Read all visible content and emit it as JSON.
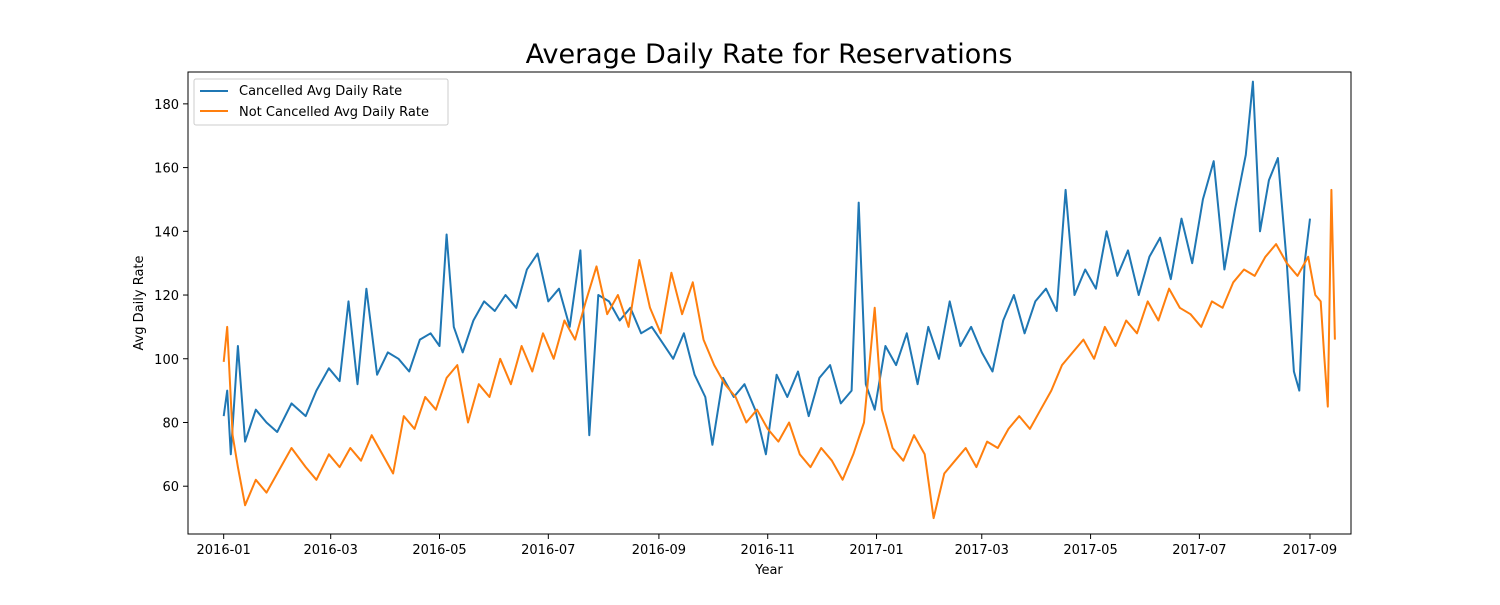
{
  "chart_data": {
    "type": "line",
    "title": "Average Daily Rate for Reservations",
    "xlabel": "Year",
    "ylabel": "Avg Daily Rate",
    "xlim": [
      "2015-12-12",
      "2017-09-24"
    ],
    "ylim": [
      45,
      190
    ],
    "x_ticks": [
      "2016-01",
      "2016-03",
      "2016-05",
      "2016-07",
      "2016-09",
      "2016-11",
      "2017-01",
      "2017-03",
      "2017-05",
      "2017-07",
      "2017-09"
    ],
    "y_ticks": [
      60,
      80,
      100,
      120,
      140,
      160,
      180
    ],
    "grid": false,
    "legend_position": "upper left",
    "series": [
      {
        "name": "Cancelled Avg Daily Rate",
        "color": "#1f77b4",
        "points": [
          [
            "2016-01-01",
            82
          ],
          [
            "2016-01-03",
            90
          ],
          [
            "2016-01-05",
            70
          ],
          [
            "2016-01-09",
            104
          ],
          [
            "2016-01-13",
            74
          ],
          [
            "2016-01-19",
            84
          ],
          [
            "2016-01-25",
            80
          ],
          [
            "2016-01-31",
            77
          ],
          [
            "2016-02-08",
            86
          ],
          [
            "2016-02-16",
            82
          ],
          [
            "2016-02-22",
            90
          ],
          [
            "2016-02-29",
            97
          ],
          [
            "2016-03-06",
            93
          ],
          [
            "2016-03-11",
            118
          ],
          [
            "2016-03-16",
            92
          ],
          [
            "2016-03-21",
            122
          ],
          [
            "2016-03-27",
            95
          ],
          [
            "2016-04-02",
            102
          ],
          [
            "2016-04-08",
            100
          ],
          [
            "2016-04-14",
            96
          ],
          [
            "2016-04-20",
            106
          ],
          [
            "2016-04-26",
            108
          ],
          [
            "2016-05-01",
            104
          ],
          [
            "2016-05-05",
            139
          ],
          [
            "2016-05-09",
            110
          ],
          [
            "2016-05-14",
            102
          ],
          [
            "2016-05-20",
            112
          ],
          [
            "2016-05-26",
            118
          ],
          [
            "2016-06-01",
            115
          ],
          [
            "2016-06-07",
            120
          ],
          [
            "2016-06-13",
            116
          ],
          [
            "2016-06-19",
            128
          ],
          [
            "2016-06-25",
            133
          ],
          [
            "2016-07-01",
            118
          ],
          [
            "2016-07-07",
            122
          ],
          [
            "2016-07-13",
            110
          ],
          [
            "2016-07-19",
            134
          ],
          [
            "2016-07-24",
            76
          ],
          [
            "2016-07-29",
            120
          ],
          [
            "2016-08-04",
            118
          ],
          [
            "2016-08-10",
            112
          ],
          [
            "2016-08-16",
            116
          ],
          [
            "2016-08-22",
            108
          ],
          [
            "2016-08-28",
            110
          ],
          [
            "2016-09-03",
            105
          ],
          [
            "2016-09-09",
            100
          ],
          [
            "2016-09-15",
            108
          ],
          [
            "2016-09-21",
            95
          ],
          [
            "2016-09-27",
            88
          ],
          [
            "2016-10-01",
            73
          ],
          [
            "2016-10-07",
            94
          ],
          [
            "2016-10-13",
            88
          ],
          [
            "2016-10-19",
            92
          ],
          [
            "2016-10-25",
            84
          ],
          [
            "2016-10-31",
            70
          ],
          [
            "2016-11-06",
            95
          ],
          [
            "2016-11-12",
            88
          ],
          [
            "2016-11-18",
            96
          ],
          [
            "2016-11-24",
            82
          ],
          [
            "2016-11-30",
            94
          ],
          [
            "2016-12-06",
            98
          ],
          [
            "2016-12-12",
            86
          ],
          [
            "2016-12-18",
            90
          ],
          [
            "2016-12-22",
            149
          ],
          [
            "2016-12-26",
            92
          ],
          [
            "2016-12-31",
            84
          ],
          [
            "2017-01-06",
            104
          ],
          [
            "2017-01-12",
            98
          ],
          [
            "2017-01-18",
            108
          ],
          [
            "2017-01-24",
            92
          ],
          [
            "2017-01-30",
            110
          ],
          [
            "2017-02-05",
            100
          ],
          [
            "2017-02-11",
            118
          ],
          [
            "2017-02-17",
            104
          ],
          [
            "2017-02-23",
            110
          ],
          [
            "2017-03-01",
            102
          ],
          [
            "2017-03-07",
            96
          ],
          [
            "2017-03-13",
            112
          ],
          [
            "2017-03-19",
            120
          ],
          [
            "2017-03-25",
            108
          ],
          [
            "2017-03-31",
            118
          ],
          [
            "2017-04-06",
            122
          ],
          [
            "2017-04-12",
            115
          ],
          [
            "2017-04-17",
            153
          ],
          [
            "2017-04-22",
            120
          ],
          [
            "2017-04-28",
            128
          ],
          [
            "2017-05-04",
            122
          ],
          [
            "2017-05-10",
            140
          ],
          [
            "2017-05-16",
            126
          ],
          [
            "2017-05-22",
            134
          ],
          [
            "2017-05-28",
            120
          ],
          [
            "2017-06-03",
            132
          ],
          [
            "2017-06-09",
            138
          ],
          [
            "2017-06-15",
            125
          ],
          [
            "2017-06-21",
            144
          ],
          [
            "2017-06-27",
            130
          ],
          [
            "2017-07-03",
            150
          ],
          [
            "2017-07-09",
            162
          ],
          [
            "2017-07-15",
            128
          ],
          [
            "2017-07-21",
            147
          ],
          [
            "2017-07-27",
            164
          ],
          [
            "2017-07-31",
            187
          ],
          [
            "2017-08-04",
            140
          ],
          [
            "2017-08-09",
            156
          ],
          [
            "2017-08-14",
            163
          ],
          [
            "2017-08-19",
            130
          ],
          [
            "2017-08-23",
            96
          ],
          [
            "2017-08-26",
            90
          ],
          [
            "2017-08-29",
            130
          ],
          [
            "2017-09-01",
            144
          ]
        ]
      },
      {
        "name": "Not Cancelled Avg Daily Rate",
        "color": "#ff7f0e",
        "points": [
          [
            "2016-01-01",
            99
          ],
          [
            "2016-01-03",
            110
          ],
          [
            "2016-01-06",
            76
          ],
          [
            "2016-01-09",
            66
          ],
          [
            "2016-01-13",
            54
          ],
          [
            "2016-01-19",
            62
          ],
          [
            "2016-01-25",
            58
          ],
          [
            "2016-01-31",
            64
          ],
          [
            "2016-02-08",
            72
          ],
          [
            "2016-02-16",
            66
          ],
          [
            "2016-02-22",
            62
          ],
          [
            "2016-02-29",
            70
          ],
          [
            "2016-03-06",
            66
          ],
          [
            "2016-03-12",
            72
          ],
          [
            "2016-03-18",
            68
          ],
          [
            "2016-03-24",
            76
          ],
          [
            "2016-03-30",
            70
          ],
          [
            "2016-04-05",
            64
          ],
          [
            "2016-04-11",
            82
          ],
          [
            "2016-04-17",
            78
          ],
          [
            "2016-04-23",
            88
          ],
          [
            "2016-04-29",
            84
          ],
          [
            "2016-05-05",
            94
          ],
          [
            "2016-05-11",
            98
          ],
          [
            "2016-05-17",
            80
          ],
          [
            "2016-05-23",
            92
          ],
          [
            "2016-05-29",
            88
          ],
          [
            "2016-06-04",
            100
          ],
          [
            "2016-06-10",
            92
          ],
          [
            "2016-06-16",
            104
          ],
          [
            "2016-06-22",
            96
          ],
          [
            "2016-06-28",
            108
          ],
          [
            "2016-07-04",
            100
          ],
          [
            "2016-07-10",
            112
          ],
          [
            "2016-07-16",
            106
          ],
          [
            "2016-07-22",
            118
          ],
          [
            "2016-07-28",
            129
          ],
          [
            "2016-08-03",
            114
          ],
          [
            "2016-08-09",
            120
          ],
          [
            "2016-08-15",
            110
          ],
          [
            "2016-08-21",
            131
          ],
          [
            "2016-08-27",
            116
          ],
          [
            "2016-09-02",
            108
          ],
          [
            "2016-09-08",
            127
          ],
          [
            "2016-09-14",
            114
          ],
          [
            "2016-09-20",
            124
          ],
          [
            "2016-09-26",
            106
          ],
          [
            "2016-10-02",
            98
          ],
          [
            "2016-10-08",
            92
          ],
          [
            "2016-10-14",
            88
          ],
          [
            "2016-10-20",
            80
          ],
          [
            "2016-10-26",
            84
          ],
          [
            "2016-11-01",
            78
          ],
          [
            "2016-11-07",
            74
          ],
          [
            "2016-11-13",
            80
          ],
          [
            "2016-11-19",
            70
          ],
          [
            "2016-11-25",
            66
          ],
          [
            "2016-12-01",
            72
          ],
          [
            "2016-12-07",
            68
          ],
          [
            "2016-12-13",
            62
          ],
          [
            "2016-12-19",
            70
          ],
          [
            "2016-12-25",
            80
          ],
          [
            "2016-12-31",
            116
          ],
          [
            "2017-01-04",
            84
          ],
          [
            "2017-01-10",
            72
          ],
          [
            "2017-01-16",
            68
          ],
          [
            "2017-01-22",
            76
          ],
          [
            "2017-01-28",
            70
          ],
          [
            "2017-02-02",
            50
          ],
          [
            "2017-02-08",
            64
          ],
          [
            "2017-02-14",
            68
          ],
          [
            "2017-02-20",
            72
          ],
          [
            "2017-02-26",
            66
          ],
          [
            "2017-03-04",
            74
          ],
          [
            "2017-03-10",
            72
          ],
          [
            "2017-03-16",
            78
          ],
          [
            "2017-03-22",
            82
          ],
          [
            "2017-03-28",
            78
          ],
          [
            "2017-04-03",
            84
          ],
          [
            "2017-04-09",
            90
          ],
          [
            "2017-04-15",
            98
          ],
          [
            "2017-04-21",
            102
          ],
          [
            "2017-04-27",
            106
          ],
          [
            "2017-05-03",
            100
          ],
          [
            "2017-05-09",
            110
          ],
          [
            "2017-05-15",
            104
          ],
          [
            "2017-05-21",
            112
          ],
          [
            "2017-05-27",
            108
          ],
          [
            "2017-06-02",
            118
          ],
          [
            "2017-06-08",
            112
          ],
          [
            "2017-06-14",
            122
          ],
          [
            "2017-06-20",
            116
          ],
          [
            "2017-06-26",
            114
          ],
          [
            "2017-07-02",
            110
          ],
          [
            "2017-07-08",
            118
          ],
          [
            "2017-07-14",
            116
          ],
          [
            "2017-07-20",
            124
          ],
          [
            "2017-07-26",
            128
          ],
          [
            "2017-08-01",
            126
          ],
          [
            "2017-08-07",
            132
          ],
          [
            "2017-08-13",
            136
          ],
          [
            "2017-08-19",
            130
          ],
          [
            "2017-08-25",
            126
          ],
          [
            "2017-08-31",
            132
          ],
          [
            "2017-09-04",
            120
          ],
          [
            "2017-09-07",
            118
          ],
          [
            "2017-09-09",
            101
          ],
          [
            "2017-09-11",
            85
          ],
          [
            "2017-09-13",
            153
          ],
          [
            "2017-09-15",
            106
          ]
        ]
      }
    ]
  }
}
